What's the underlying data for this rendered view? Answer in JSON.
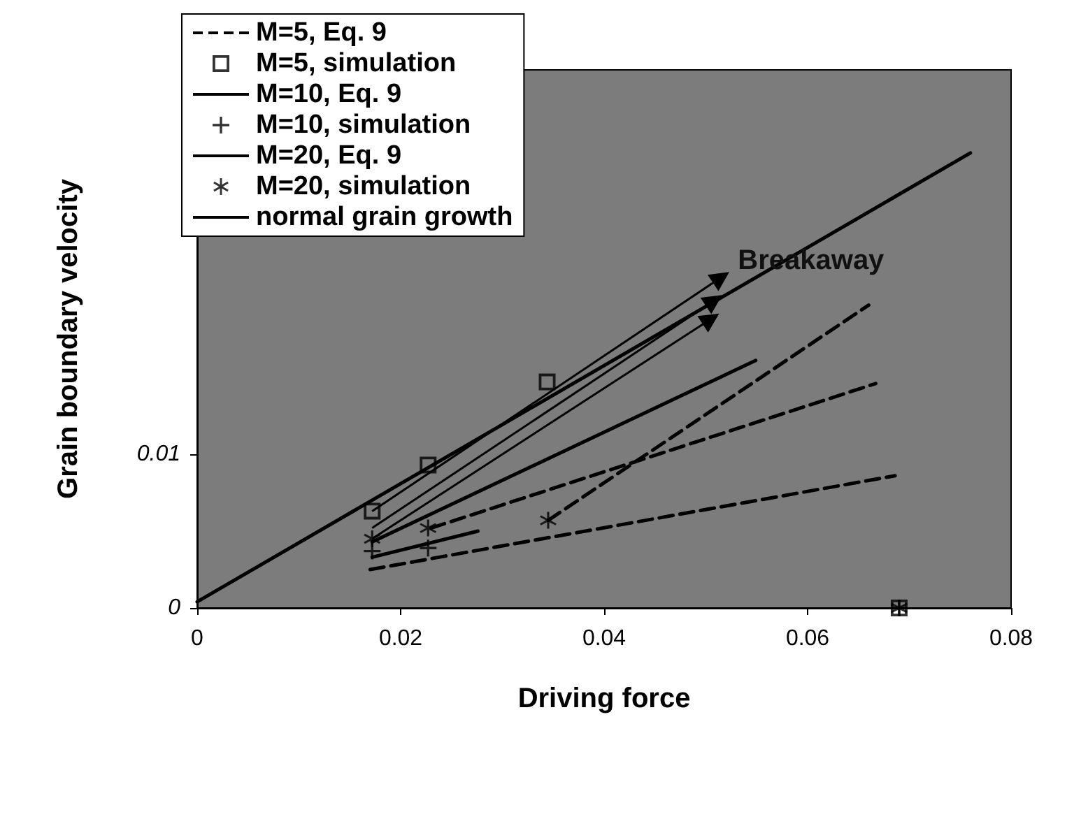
{
  "chart_data": {
    "type": "line",
    "xlabel": "Driving force",
    "ylabel": "Grain boundary velocity",
    "xlim": [
      0,
      0.08
    ],
    "xticks": [
      0,
      0.02,
      0.04,
      0.06,
      0.08
    ],
    "ylim": [
      0,
      0.035
    ],
    "yticks": [
      0,
      0.01
    ],
    "grid": false,
    "legend": "top left",
    "annotations": [
      "Breakaway"
    ],
    "series": [
      {
        "name": "M=5, Eq. 9",
        "color": "#000000",
        "line_style": "dashed",
        "marker": "none",
        "x": [
          0.017,
          0.0686
        ],
        "values": [
          0.0025,
          0.0086
        ]
      },
      {
        "color": "#000000",
        "line_style": "dashed",
        "marker": "none",
        "x": [
          0.0345,
          0.066
        ],
        "values": [
          0.0057,
          0.0197
        ]
      },
      {
        "color": "#000000",
        "line_style": "dashed",
        "marker": "none",
        "x": [
          0.023,
          0.0667
        ],
        "values": [
          0.0052,
          0.0146
        ]
      },
      {
        "name": "M=5, simulation",
        "type": "scatter",
        "color": "#000000",
        "marker": "square",
        "x": [
          0.0172,
          0.0227,
          0.0344,
          0.069
        ],
        "values": [
          0.0063,
          0.0093,
          0.0147,
          0
        ]
      },
      {
        "name": "M=10, Eq. 9",
        "color": "#000000",
        "line_style": "solid",
        "marker": "none",
        "x": [
          0.0172,
          0.0549
        ],
        "values": [
          0.0043,
          0.0161
        ]
      },
      {
        "name": "M=10, simulation",
        "type": "scatter",
        "color": "#000000",
        "marker": "cross",
        "x": [
          0.0172,
          0.0227,
          0.069
        ],
        "values": [
          0.0037,
          0.0039,
          0
        ]
      },
      {
        "name": "M=20, Eq. 9",
        "color": "#000000",
        "line_style": "solid",
        "marker": "none",
        "x": [
          0.0172,
          0.0276
        ],
        "values": [
          0.0033,
          0.005
        ]
      },
      {
        "name": "M=20, simulation",
        "type": "scatter",
        "color": "#000000",
        "marker": "star",
        "x": [
          0.0172,
          0.0227,
          0.0345,
          0.069
        ],
        "values": [
          0.0045,
          0.0052,
          0.0057,
          0
        ]
      },
      {
        "name": "normal grain growth",
        "color": "#000000",
        "line_style": "solid",
        "marker": "none",
        "x": [
          0,
          0.076
        ],
        "values": [
          0.0004,
          0.0296
        ]
      },
      {
        "color": "#000000",
        "line_style": "solid",
        "marker": "triangle",
        "x": [
          0.0172,
          0.0515
        ],
        "values": [
          0.0063,
          0.0215
        ]
      },
      {
        "color": "#000000",
        "line_style": "solid",
        "marker": "triangle",
        "x": [
          0.0172,
          0.0508
        ],
        "values": [
          0.0052,
          0.02
        ]
      },
      {
        "color": "#000000",
        "line_style": "solid",
        "marker": "triangle",
        "x": [
          0.0172,
          0.0505
        ],
        "values": [
          0.0045,
          0.0188
        ]
      }
    ]
  }
}
